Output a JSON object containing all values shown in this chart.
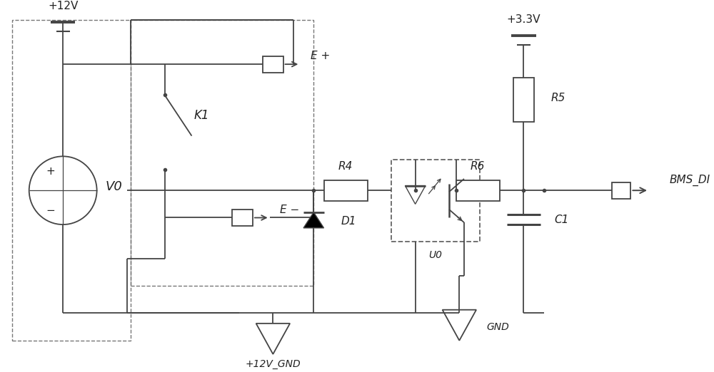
{
  "bg_color": "#ffffff",
  "line_color": "#444444",
  "dash_color": "#777777",
  "text_color": "#222222",
  "figsize": [
    10.0,
    5.22
  ],
  "dpi": 100,
  "labels": {
    "plus12V": "+12V",
    "plus3V3": "+3.3V",
    "V0": "V0",
    "K1": "K1",
    "Eplus": "E +",
    "Eminus": "E −",
    "R4": "R4",
    "R5": "R5",
    "R6": "R6",
    "D1": "D1",
    "U0": "U0",
    "C1": "C1",
    "BMS_DI": "BMS_DI",
    "GND": "GND",
    "plus12V_GND": "+12V_GND",
    "plus_sign": "+",
    "minus_sign": "−"
  }
}
